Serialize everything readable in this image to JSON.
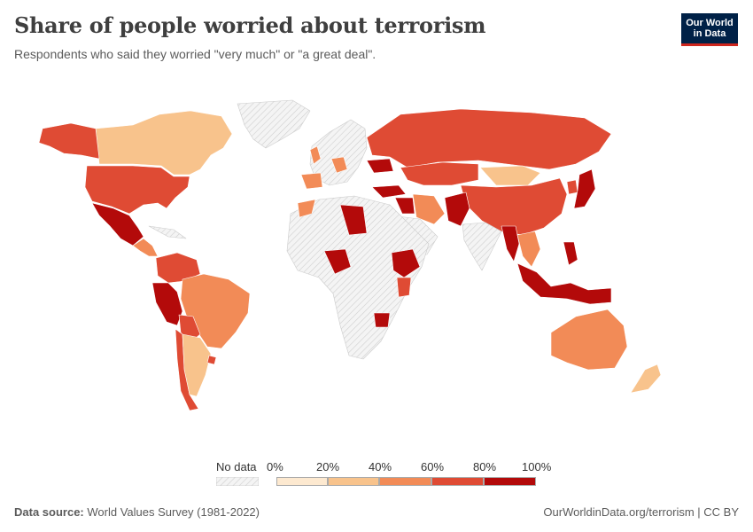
{
  "header": {
    "title": "Share of people worried about terrorism",
    "subtitle": "Respondents who said they worried \"very much\" or \"a great deal\"."
  },
  "logo": {
    "line1": "Our World",
    "line2": "in Data"
  },
  "legend": {
    "no_data_label": "No data",
    "bins": [
      {
        "label": "0%",
        "color": "#fde9d0"
      },
      {
        "label": "20%",
        "color": "#f8c38c"
      },
      {
        "label": "40%",
        "color": "#f28b57"
      },
      {
        "label": "60%",
        "color": "#df4b34"
      },
      {
        "label": "80%",
        "color": "#b30a0a"
      }
    ],
    "end_label": "100%",
    "no_data_color": "#e8e8e8"
  },
  "footer": {
    "source_label": "Data source:",
    "source_text": "World Values Survey (1981-2022)",
    "credit": "OurWorldinData.org/terrorism | CC BY"
  },
  "map_colors": {
    "no_data": "#ececec",
    "bin_20_40": "#f8c38c",
    "bin_40_60": "#f28b57",
    "bin_60_80": "#df4b34",
    "bin_80_100": "#b30a0a"
  }
}
